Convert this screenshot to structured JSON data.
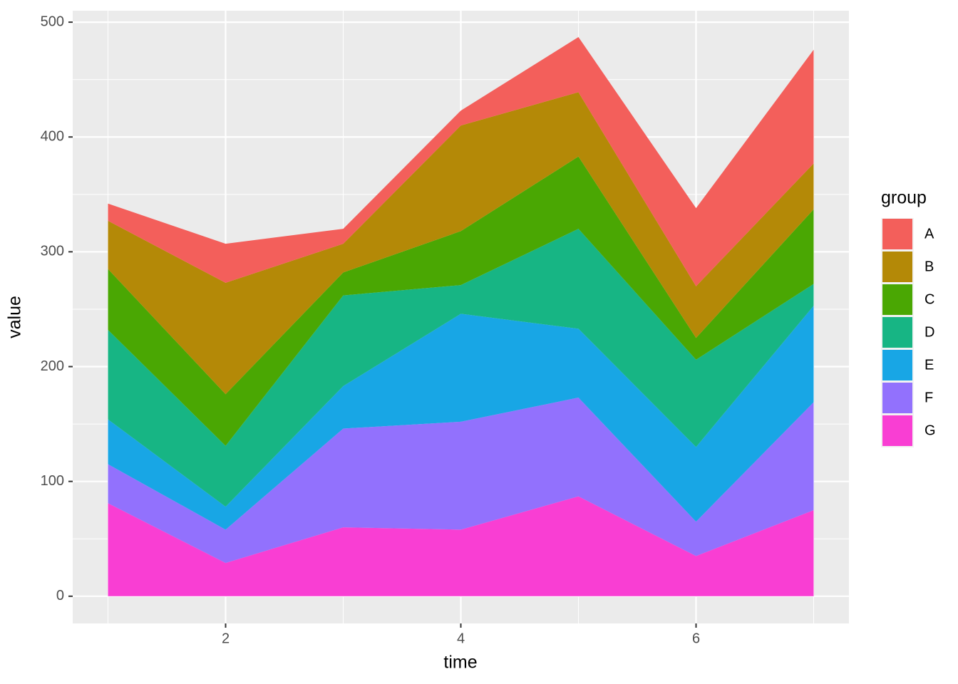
{
  "chart_data": {
    "type": "stacked-area",
    "x_label": "time",
    "y_label": "value",
    "legend_title": "group",
    "x": [
      1,
      2,
      3,
      4,
      5,
      6,
      7
    ],
    "series": [
      {
        "name": "A",
        "color": "#F35F5B",
        "values": [
          15,
          34,
          13,
          13,
          48,
          68,
          99
        ]
      },
      {
        "name": "B",
        "color": "#B48907",
        "values": [
          42,
          97,
          25,
          92,
          56,
          45,
          40
        ]
      },
      {
        "name": "C",
        "color": "#4AA703",
        "values": [
          53,
          45,
          20,
          47,
          63,
          19,
          65
        ]
      },
      {
        "name": "D",
        "color": "#17B584",
        "values": [
          78,
          53,
          79,
          25,
          87,
          76,
          19
        ]
      },
      {
        "name": "E",
        "color": "#18A6E5",
        "values": [
          39,
          20,
          37,
          94,
          60,
          65,
          84
        ]
      },
      {
        "name": "F",
        "color": "#9271FD",
        "values": [
          34,
          29,
          86,
          94,
          86,
          30,
          94
        ]
      },
      {
        "name": "G",
        "color": "#F93ED3",
        "values": [
          81,
          29,
          60,
          58,
          87,
          35,
          75
        ]
      }
    ],
    "xlim": [
      0.7,
      7.3
    ],
    "xticks": [
      2,
      4,
      6
    ],
    "ylim": [
      -23.7,
      510
    ],
    "yticks": [
      0,
      100,
      200,
      300,
      400,
      500
    ],
    "grid": true,
    "legend_position": "right"
  }
}
